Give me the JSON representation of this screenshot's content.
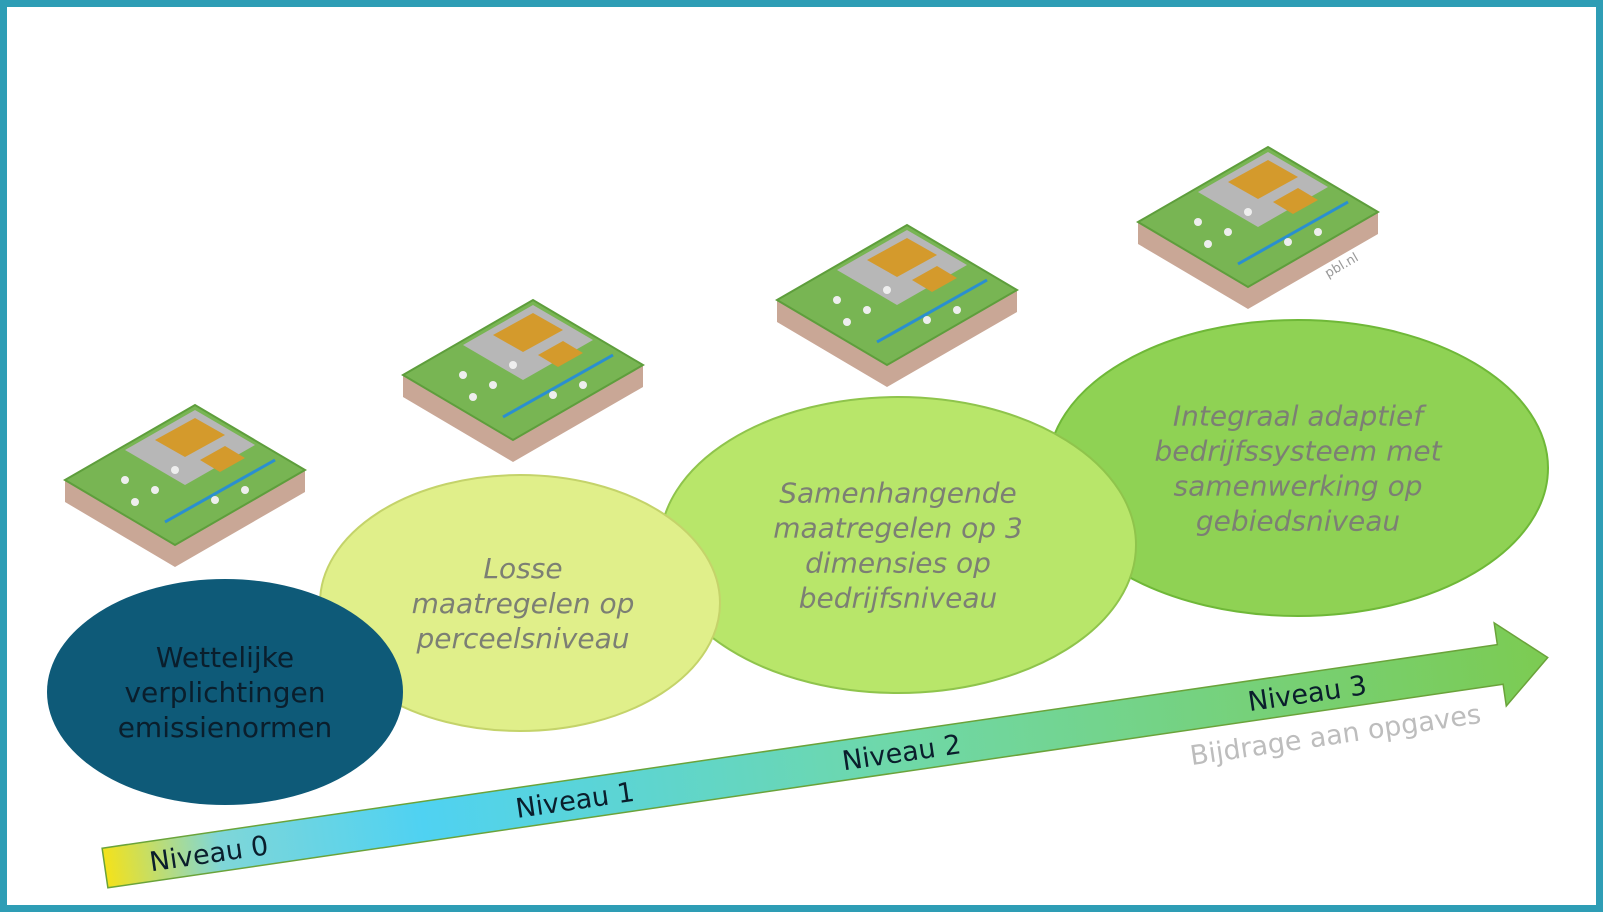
{
  "stages": [
    {
      "lines": [
        "Wettelijke",
        "verplichtingen",
        "emissienormen"
      ]
    },
    {
      "lines": [
        "Losse",
        "maatregelen op",
        "perceelsniveau"
      ]
    },
    {
      "lines": [
        "Samenhangende",
        "maatregelen op 3",
        "dimensies op",
        "bedrijfsniveau"
      ]
    },
    {
      "lines": [
        "Integraal adaptief",
        "bedrijfssysteem met",
        "samenwerking op",
        "gebiedsniveau"
      ]
    }
  ],
  "levels": [
    "Niveau 0",
    "Niveau 1",
    "Niveau 2",
    "Niveau 3"
  ],
  "axis_label": "Bijdrage aan opgaves",
  "credit": "pbl.nl"
}
